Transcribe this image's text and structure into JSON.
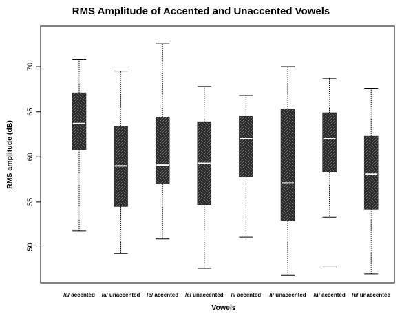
{
  "chart_data": {
    "type": "box",
    "title": "RMS Amplitude of Accented and Unaccented Vowels",
    "xlabel": "Vowels",
    "ylabel": "RMS amplitude (dB)",
    "ylim": [
      46.0,
      74.5
    ],
    "yticks": [
      50,
      55,
      60,
      65,
      70
    ],
    "categories": [
      "/a/ accented",
      "/a/ unaccented",
      "/e/ accented",
      "/e/ unaccented",
      "/i/ accented",
      "/i/ unaccented",
      "/u/ accented",
      "/u/ unaccented"
    ],
    "boxes": [
      {
        "whisker_low": 51.8,
        "q1": 60.8,
        "median": 63.7,
        "q3": 67.1,
        "whisker_high": 70.8,
        "outliers": []
      },
      {
        "whisker_low": 49.3,
        "q1": 54.5,
        "median": 59.0,
        "q3": 63.4,
        "whisker_high": 69.5,
        "outliers": []
      },
      {
        "whisker_low": 50.9,
        "q1": 57.0,
        "median": 59.1,
        "q3": 64.4,
        "whisker_high": 72.6,
        "outliers": []
      },
      {
        "whisker_low": 47.6,
        "q1": 54.7,
        "median": 59.3,
        "q3": 63.9,
        "whisker_high": 67.8,
        "outliers": []
      },
      {
        "whisker_low": 51.1,
        "q1": 57.8,
        "median": 62.0,
        "q3": 64.5,
        "whisker_high": 66.8,
        "outliers": []
      },
      {
        "whisker_low": 46.9,
        "q1": 52.9,
        "median": 57.1,
        "q3": 65.3,
        "whisker_high": 70.0,
        "outliers": []
      },
      {
        "whisker_low": 53.3,
        "q1": 58.3,
        "median": 62.0,
        "q3": 64.9,
        "whisker_high": 68.7,
        "outliers": [
          47.8
        ]
      },
      {
        "whisker_low": 47.0,
        "q1": 54.2,
        "median": 58.1,
        "q3": 62.3,
        "whisker_high": 67.6,
        "outliers": []
      }
    ],
    "colors": {
      "box_fill": "#2b2b2b",
      "median": "#ffffff",
      "whisker": "#000000",
      "frame": "#000000"
    }
  }
}
